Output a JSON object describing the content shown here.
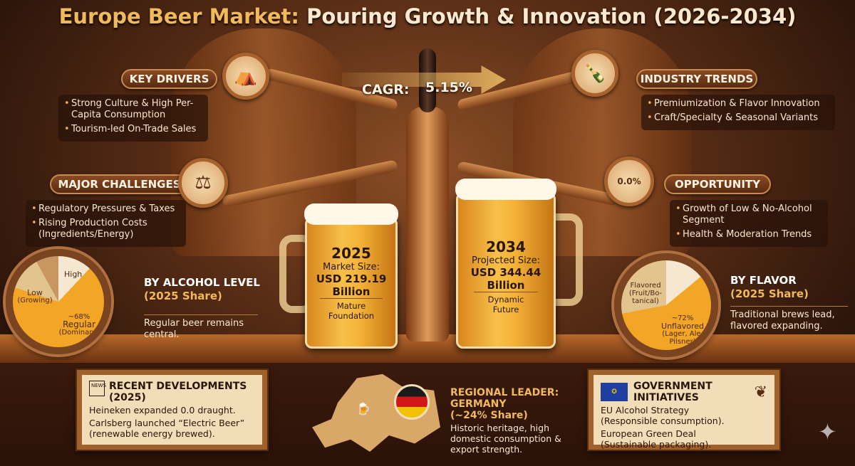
{
  "title": {
    "part1": "Europe Beer Market:",
    "part2": " Pouring Growth & Innovation (2026-2034)"
  },
  "cagr": {
    "label": "CAGR:",
    "value": "5.15%"
  },
  "key_drivers": {
    "label": "KEY DRIVERS",
    "icon": "festival-crowd-icon",
    "items": [
      "Strong Culture & High Per-Capita Consumption",
      "Tourism-led On-Trade Sales"
    ]
  },
  "major_challenges": {
    "label": "MAJOR CHALLENGES",
    "icon": "gavel-chart-icon",
    "items": [
      "Regulatory Pressures & Taxes",
      "Rising Production Costs (Ingredients/Energy)"
    ]
  },
  "industry_trends": {
    "label": "INDUSTRY TRENDS",
    "icon": "beer-bottle-fruit-icon",
    "items": [
      "Premiumization & Flavor Innovation",
      "Craft/Specialty & Seasonal Variants"
    ]
  },
  "opportunity": {
    "label": "OPPORTUNITY",
    "icon": "zero-alcohol-bottle-icon",
    "icon_text": "0.0%",
    "items": [
      "Growth of Low & No-Alcohol Segment",
      "Health & Moderation Trends"
    ]
  },
  "mug_2025": {
    "year": "2025",
    "label": "Market Size:",
    "value": "USD 219.19",
    "unit": "Billion",
    "note": "Mature Foundation"
  },
  "mug_2034": {
    "year": "2034",
    "label": "Projected Size:",
    "value": "USD 344.44",
    "unit": "Billion",
    "note": "Dynamic Future"
  },
  "alcohol_level": {
    "title": "BY ALCOHOL LEVEL",
    "subtitle": "(2025 Share)",
    "desc": "Regular beer remains central.",
    "segments": [
      {
        "label": "High"
      },
      {
        "label": "Low",
        "sub": "(Growing)"
      },
      {
        "pct": "~68%",
        "label": "Regular",
        "sub": "(Dominant)",
        "share": 68
      }
    ]
  },
  "flavor": {
    "title": "BY FLAVOR",
    "subtitle": "(2025 Share)",
    "desc": "Traditional brews lead, flavored expanding.",
    "segments": [
      {
        "label": "Flavored",
        "sub": "(Fruit/Bo-tanical)"
      },
      {
        "pct": "~72%",
        "label": "Unflavored",
        "sub": "(Lager, Ale, Pilsner)",
        "share": 72
      }
    ]
  },
  "recent": {
    "icon_text": "NEWS",
    "title": "RECENT DEVELOPMENTS",
    "year": "(2025)",
    "items": [
      "Heineken expanded 0.0 draught.",
      "Carlsberg launched “Electric Beer” (renewable energy brewed)."
    ]
  },
  "regional": {
    "title1": "REGIONAL LEADER:",
    "title2": "GERMANY",
    "share": "(~24% Share)",
    "desc": "Historic heritage, high domestic consumption & export strength."
  },
  "government": {
    "title": "GOVERNMENT INITIATIVES",
    "items": [
      "EU Alcohol Strategy (Responsible consumption).",
      "European Green Deal (Sustainable packaging)."
    ]
  },
  "colors": {
    "gold": "#f2b95a",
    "copper": "#c98a4e",
    "beer": "#f3b236",
    "board": "#f1ddb8"
  }
}
